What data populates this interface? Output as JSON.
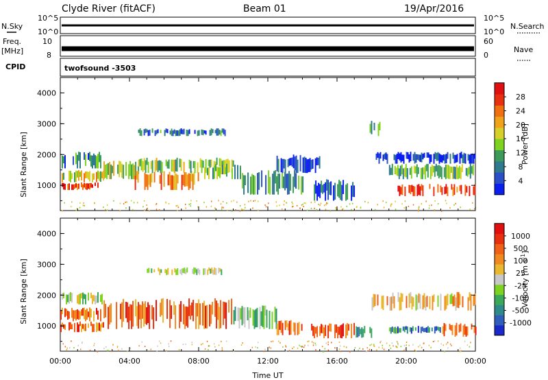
{
  "header": {
    "station": "Clyde River (fitACF)",
    "beam": "Beam 01",
    "date": "19/Apr/2016"
  },
  "strips": {
    "nsky_label": "N.Sky",
    "nsearch_label": "N.Search",
    "nsky_ticks": [
      "10^5",
      "10^0"
    ],
    "nsearch_ticks": [
      "10^5",
      "10^0"
    ],
    "freq_label_1": "Freq.",
    "freq_label_2": "[MHz]",
    "freq_ticks": [
      "10",
      "8"
    ],
    "nave_label": "Nave",
    "nave_ticks": [
      "60",
      "0"
    ],
    "cpid_label": "CPID",
    "cpid_value": "twofsound -3503"
  },
  "chart_data": [
    {
      "type": "heatmap",
      "name": "power",
      "ylabel": "Slant Range [km]",
      "xlabel": "",
      "ylim": [
        180,
        4500
      ],
      "yticks": [
        "1000",
        "2000",
        "3000",
        "4000"
      ],
      "colorbar_label": "Power [dB]",
      "colorbar_ticks": [
        "4",
        "8",
        "12",
        "16",
        "20",
        "24",
        "28"
      ],
      "colorbar_colors": [
        "#0a1ef0",
        "#2a4fc8",
        "#2f7a8c",
        "#3c9a5a",
        "#7ed321",
        "#d8d02a",
        "#f0a21a",
        "#f07010",
        "#e83010",
        "#e01010"
      ],
      "x_range_hours": [
        0,
        24
      ],
      "regions": [
        {
          "t": [
            0.0,
            2.2
          ],
          "r": [
            850,
            1100
          ],
          "level": 0.85
        },
        {
          "t": [
            0.0,
            2.5
          ],
          "r": [
            1100,
            1500
          ],
          "level": 0.55
        },
        {
          "t": [
            0.0,
            2.5
          ],
          "r": [
            1550,
            2100
          ],
          "level": 0.25
        },
        {
          "t": [
            2.5,
            4.5
          ],
          "r": [
            1200,
            1800
          ],
          "level": 0.5
        },
        {
          "t": [
            4.3,
            8.0
          ],
          "r": [
            850,
            1500
          ],
          "level": 0.7
        },
        {
          "t": [
            4.5,
            10.0
          ],
          "r": [
            1400,
            1900
          ],
          "level": 0.45
        },
        {
          "t": [
            4.5,
            9.5
          ],
          "r": [
            2600,
            2850
          ],
          "level": 0.25
        },
        {
          "t": [
            8.0,
            10.5
          ],
          "r": [
            1200,
            1700
          ],
          "level": 0.4
        },
        {
          "t": [
            10.5,
            14.0
          ],
          "r": [
            700,
            1500
          ],
          "level": 0.3
        },
        {
          "t": [
            12.5,
            15.0
          ],
          "r": [
            1400,
            2000
          ],
          "level": 0.15
        },
        {
          "t": [
            14.5,
            17.0
          ],
          "r": [
            500,
            1200
          ],
          "level": 0.2
        },
        {
          "t": [
            17.8,
            18.5
          ],
          "r": [
            2600,
            3100
          ],
          "level": 0.4
        },
        {
          "t": [
            18.0,
            24.0
          ],
          "r": [
            1700,
            2100
          ],
          "level": 0.1
        },
        {
          "t": [
            19.0,
            24.0
          ],
          "r": [
            1200,
            1700
          ],
          "level": 0.4
        },
        {
          "t": [
            19.5,
            24.0
          ],
          "r": [
            650,
            1050
          ],
          "level": 0.85
        }
      ]
    },
    {
      "type": "heatmap",
      "name": "velocity",
      "ylabel": "Slant Range [km]",
      "xlabel": "Time UT",
      "ylim": [
        180,
        4500
      ],
      "yticks": [
        "1000",
        "2000",
        "3000",
        "4000"
      ],
      "xticks": [
        "00:00",
        "04:00",
        "08:00",
        "12:00",
        "16:00",
        "20:00",
        "00:00"
      ],
      "colorbar_label": "Velocity [m s",
      "colorbar_label_sup": "-1",
      "colorbar_ticks": [
        "1000",
        "500",
        "100",
        "25",
        "-25",
        "-100",
        "-500",
        "-1000"
      ],
      "colorbar_colors": [
        "#1a2ac8",
        "#2f5fb8",
        "#2f8a8a",
        "#3ca85a",
        "#7ed321",
        "#c8c8c8",
        "#e8b830",
        "#f08a20",
        "#f06018",
        "#e83010",
        "#e01010"
      ],
      "x_range_hours": [
        0,
        24
      ],
      "regions": [
        {
          "t": [
            0.0,
            2.5
          ],
          "r": [
            800,
            1150
          ],
          "level": 0.75
        },
        {
          "t": [
            0.0,
            2.5
          ],
          "r": [
            1150,
            1600
          ],
          "level": 0.75
        },
        {
          "t": [
            0.0,
            2.5
          ],
          "r": [
            1700,
            2100
          ],
          "level": 0.45
        },
        {
          "t": [
            2.5,
            10.0
          ],
          "r": [
            900,
            1900
          ],
          "level": 0.78
        },
        {
          "t": [
            5.0,
            9.5
          ],
          "r": [
            2650,
            2900
          ],
          "level": 0.45
        },
        {
          "t": [
            10.0,
            12.5
          ],
          "r": [
            900,
            1700
          ],
          "level": 0.35
        },
        {
          "t": [
            12.5,
            14.0
          ],
          "r": [
            700,
            1200
          ],
          "level": 0.75
        },
        {
          "t": [
            14.5,
            17.0
          ],
          "r": [
            600,
            1100
          ],
          "level": 0.8
        },
        {
          "t": [
            17.0,
            18.0
          ],
          "r": [
            600,
            1000
          ],
          "level": 0.25
        },
        {
          "t": [
            18.0,
            24.0
          ],
          "r": [
            1500,
            2100
          ],
          "level": 0.6
        },
        {
          "t": [
            19.0,
            22.0
          ],
          "r": [
            750,
            1000
          ],
          "level": 0.2
        },
        {
          "t": [
            22.0,
            24.0
          ],
          "r": [
            650,
            1100
          ],
          "level": 0.8
        }
      ]
    }
  ]
}
